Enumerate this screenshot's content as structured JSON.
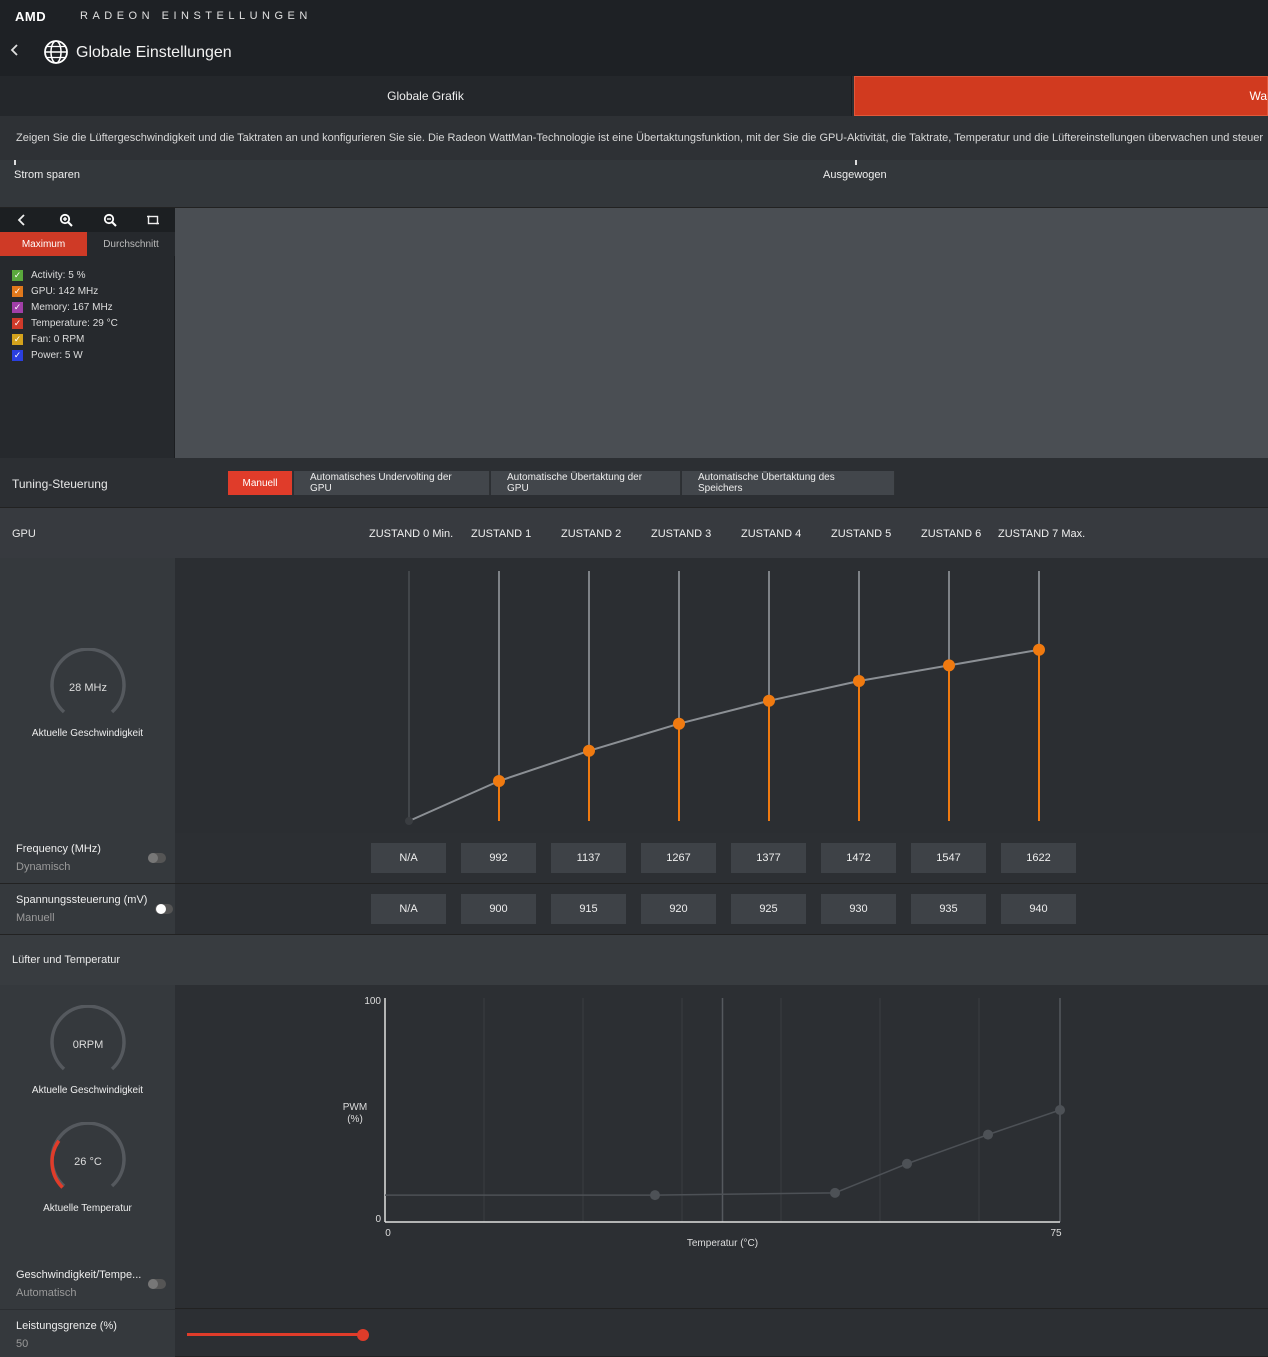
{
  "header": {
    "brand": "AMD",
    "product": "RADEON EINSTELLUNGEN",
    "page_title": "Globale Einstellungen"
  },
  "tabs": [
    {
      "label": "Globale Grafik",
      "active": false
    },
    {
      "label": "Wattf",
      "active": true
    }
  ],
  "description": "Zeigen Sie die Lüftergeschwindigkeit und die Taktraten an und konfigurieren Sie sie. Die Radeon WattMan-Technologie ist eine Übertaktungsfunktion, mit der Sie die GPU-Aktivität, die Taktrate, Temperatur und die Lüftereinstellungen überwachen und steuer",
  "profile": {
    "left_label": "Strom sparen",
    "mid_label": "Ausgewogen"
  },
  "graph_panel": {
    "segments": {
      "max": "Maximum",
      "avg": "Durchschnitt"
    },
    "legend": [
      {
        "label": "Activity: 5 %",
        "color": "#5aa83c"
      },
      {
        "label": "GPU: 142 MHz",
        "color": "#e0781c"
      },
      {
        "label": "Memory: 167 MHz",
        "color": "#a13fa8"
      },
      {
        "label": "Temperature: 29 °C",
        "color": "#d03a2a"
      },
      {
        "label": "Fan: 0 RPM",
        "color": "#d4a21c"
      },
      {
        "label": "Power: 5 W",
        "color": "#2a3fe0"
      }
    ]
  },
  "tuning": {
    "label": "Tuning-Steuerung",
    "buttons": [
      {
        "label": "Manuell",
        "active": true
      },
      {
        "label": "Automatisches Undervolting der GPU",
        "active": false
      },
      {
        "label": "Automatische Übertaktung der GPU",
        "active": false
      },
      {
        "label": "Automatische Übertaktung des Speichers",
        "active": false
      }
    ]
  },
  "gpu": {
    "label": "GPU",
    "states": [
      "ZUSTAND 0 Min.",
      "ZUSTAND 1",
      "ZUSTAND 2",
      "ZUSTAND 3",
      "ZUSTAND 4",
      "ZUSTAND 5",
      "ZUSTAND 6",
      "ZUSTAND 7 Max."
    ],
    "gauge_value": "28 MHz",
    "gauge_label": "Aktuelle Geschwindigkeit",
    "frequency": {
      "title": "Frequency (MHz)",
      "mode": "Dynamisch",
      "values": [
        "N/A",
        "992",
        "1137",
        "1267",
        "1377",
        "1472",
        "1547",
        "1622"
      ]
    },
    "voltage": {
      "title": "Spannungssteuerung (mV)",
      "mode": "Manuell",
      "values": [
        "N/A",
        "900",
        "915",
        "920",
        "925",
        "930",
        "935",
        "940"
      ]
    }
  },
  "fan": {
    "label": "Lüfter und Temperatur",
    "speed_value": "0RPM",
    "speed_label": "Aktuelle Geschwindigkeit",
    "temp_value": "26 °C",
    "temp_label": "Aktuelle Temperatur",
    "temp_fraction": 0.3,
    "chart": {
      "y_label": "PWM\n(%)",
      "x_label": "Temperatur (°C)",
      "y_max_label": "100",
      "y_min_label": "0",
      "x_min_label": "0",
      "x_max_label": "75"
    },
    "speed_temp": {
      "title": "Geschwindigkeit/Tempe...",
      "mode": "Automatisch"
    },
    "power_limit": {
      "title": "Leistungsgrenze (%)",
      "value": "50",
      "slider_fraction": 1.0
    }
  },
  "chart_data": [
    {
      "type": "line",
      "title": "",
      "categories": [
        "ZUSTAND 0 Min.",
        "ZUSTAND 1",
        "ZUSTAND 2",
        "ZUSTAND 3",
        "ZUSTAND 4",
        "ZUSTAND 5",
        "ZUSTAND 6",
        "ZUSTAND 7 Max."
      ],
      "series": [
        {
          "values": [
            null,
            992,
            1137,
            1267,
            1377,
            1472,
            1547,
            1622
          ]
        }
      ],
      "ylim": [
        800,
        2000
      ]
    },
    {
      "type": "line",
      "title": "",
      "xlabel": "Temperatur (°C)",
      "ylabel": "PWM (%)",
      "xlim": [
        0,
        75
      ],
      "ylim": [
        0,
        100
      ],
      "series": [
        {
          "x": [
            0,
            30,
            50,
            58,
            67,
            75
          ],
          "y": [
            12,
            12,
            13,
            26,
            39,
            50
          ]
        }
      ]
    }
  ],
  "colors": {
    "accent": "#d13a1f",
    "orange": "#f07a10"
  }
}
